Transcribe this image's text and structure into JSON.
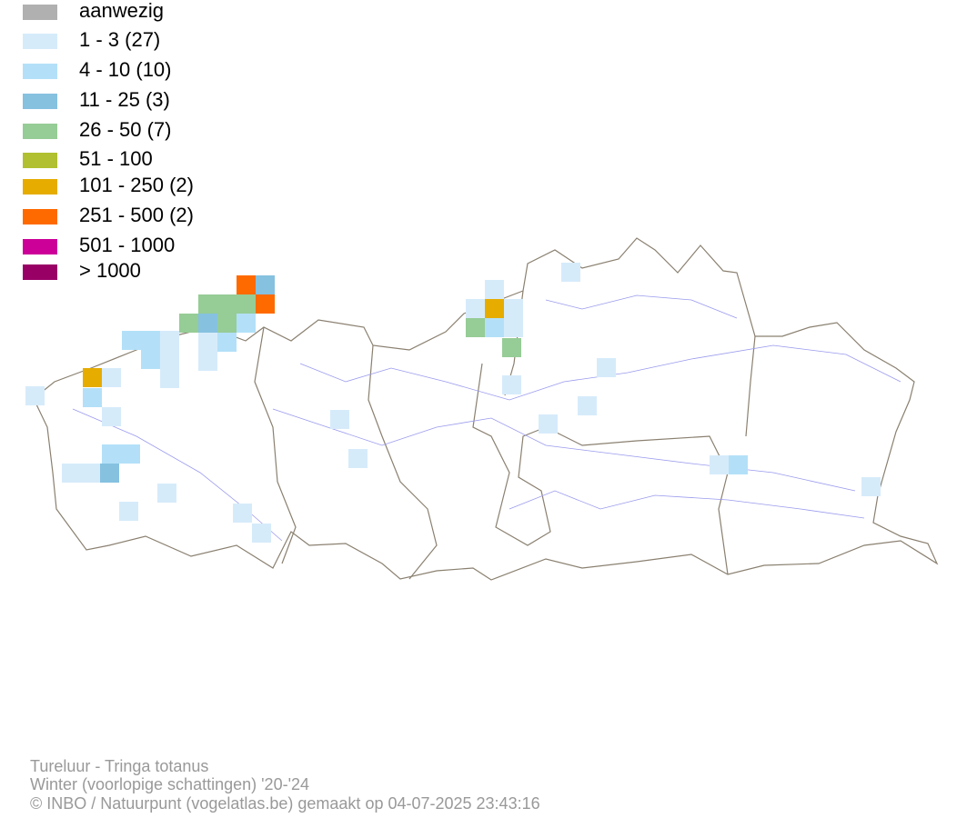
{
  "legend": [
    {
      "label": "aanwezig",
      "color": "#b0b0b0"
    },
    {
      "label": "1 - 3 (27)",
      "color": "#d6ebfa"
    },
    {
      "label": "4 - 10 (10)",
      "color": "#b3e0f8"
    },
    {
      "label": "11 - 25 (3)",
      "color": "#86c1e0"
    },
    {
      "label": "26 - 50 (7)",
      "color": "#96cc96"
    },
    {
      "label": "51 - 100",
      "color": "#b0c030"
    },
    {
      "label": "101 - 250 (2)",
      "color": "#e6ac00"
    },
    {
      "label": "251 - 500 (2)",
      "color": "#ff6a00"
    },
    {
      "label": "501 - 1000",
      "color": "#cc0099"
    },
    {
      "label": "> 1000",
      "color": "#990066"
    }
  ],
  "footer": [
    "Tureluur - Tringa totanus",
    "Winter (voorlopige schattingen) '20-'24",
    "© INBO / Natuurpunt (vogelatlas.be) gemaakt op 04-07-2025 23:43:16"
  ]
}
